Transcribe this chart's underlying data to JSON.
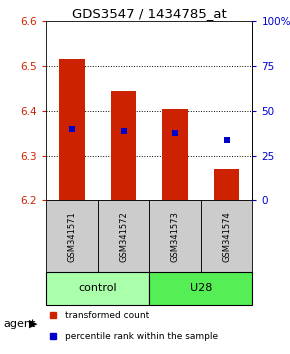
{
  "title": "GDS3547 / 1434785_at",
  "samples": [
    "GSM341571",
    "GSM341572",
    "GSM341573",
    "GSM341574"
  ],
  "bar_bottoms": [
    6.2,
    6.2,
    6.2,
    6.2
  ],
  "bar_tops": [
    6.515,
    6.445,
    6.405,
    6.27
  ],
  "bar_color": "#cc2200",
  "percentile_values": [
    6.36,
    6.355,
    6.35,
    6.335
  ],
  "percentile_color": "#0000cc",
  "ylim_left": [
    6.2,
    6.6
  ],
  "yticks_left": [
    6.2,
    6.3,
    6.4,
    6.5,
    6.6
  ],
  "ylim_right": [
    0,
    100
  ],
  "yticks_right": [
    0,
    25,
    50,
    75,
    100
  ],
  "ytick_labels_right": [
    "0",
    "25",
    "50",
    "75",
    "100%"
  ],
  "groups": [
    {
      "name": "control",
      "indices": [
        0,
        1
      ],
      "color": "#aaffaa"
    },
    {
      "name": "U28",
      "indices": [
        2,
        3
      ],
      "color": "#55ee55"
    }
  ],
  "agent_label": "agent",
  "legend_items": [
    {
      "label": "transformed count",
      "color": "#cc2200"
    },
    {
      "label": "percentile rank within the sample",
      "color": "#0000cc"
    }
  ],
  "dotted_lines": [
    6.3,
    6.4,
    6.5
  ],
  "sample_label_color": "#cccccc",
  "control_color": "#aaffaa",
  "u28_color": "#55ee55"
}
